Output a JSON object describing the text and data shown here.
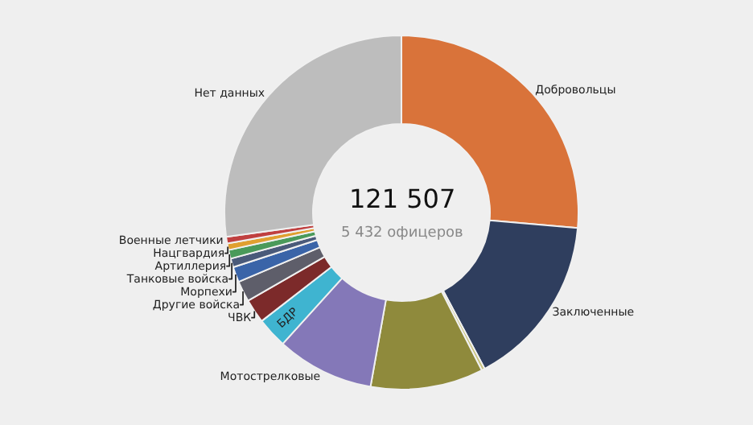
{
  "chart_data": {
    "type": "donut",
    "categories": [
      "Добровольцы",
      "Заключенные",
      null,
      null,
      "Мотострелковые",
      "БДР",
      "ЧВК",
      "Другие войска",
      "Морпехи",
      "Танковые войска",
      "Артиллерия",
      "Нацгвардия",
      "Военные летчики",
      "Нет данных"
    ],
    "values": [
      26.4,
      15.8,
      0.3,
      10.3,
      8.9,
      2.8,
      2.2,
      1.9,
      1.4,
      0.8,
      0.8,
      0.6,
      0.6,
      27.2
    ],
    "colors": [
      "#d9733a",
      "#2f3e5e",
      "#c8c27a",
      "#8f8a3c",
      "#8478b8",
      "#3fb4d0",
      "#7c2a2a",
      "#5e5e6a",
      "#3a64a8",
      "#4a5a7a",
      "#4a9a5a",
      "#e0a030",
      "#c04040",
      "#bdbdbd"
    ],
    "annotations": [
      "121 507",
      "5 432 офицеров"
    ],
    "legend": false
  }
}
